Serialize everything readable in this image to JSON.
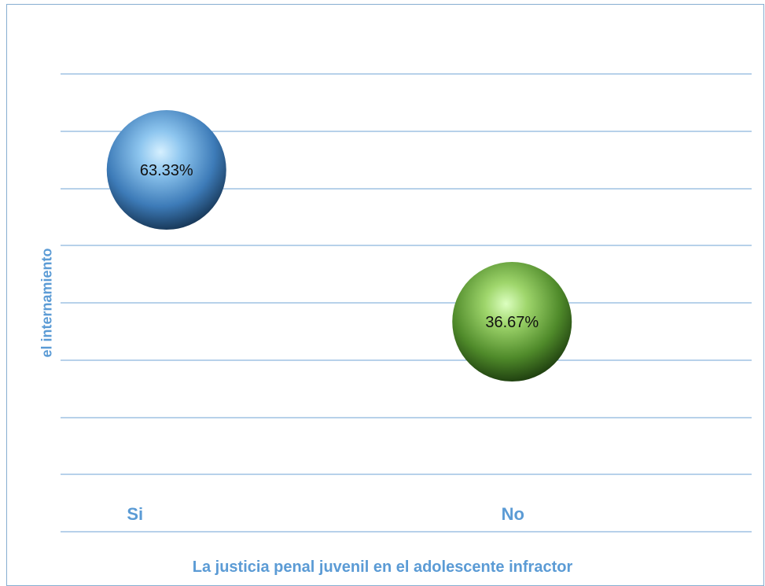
{
  "chart_data": {
    "type": "scatter",
    "categories": [
      "Si",
      "No"
    ],
    "values": [
      63.33,
      36.67
    ],
    "value_labels": [
      "63.33%",
      "36.67%"
    ],
    "colors": [
      "#5b9bd5",
      "#70ad47"
    ],
    "ylim": [
      0,
      100
    ],
    "gridlines": true,
    "xlabel": "La justicia penal juvenil en el adolescente infractor",
    "ylabel": "el internamiento"
  }
}
